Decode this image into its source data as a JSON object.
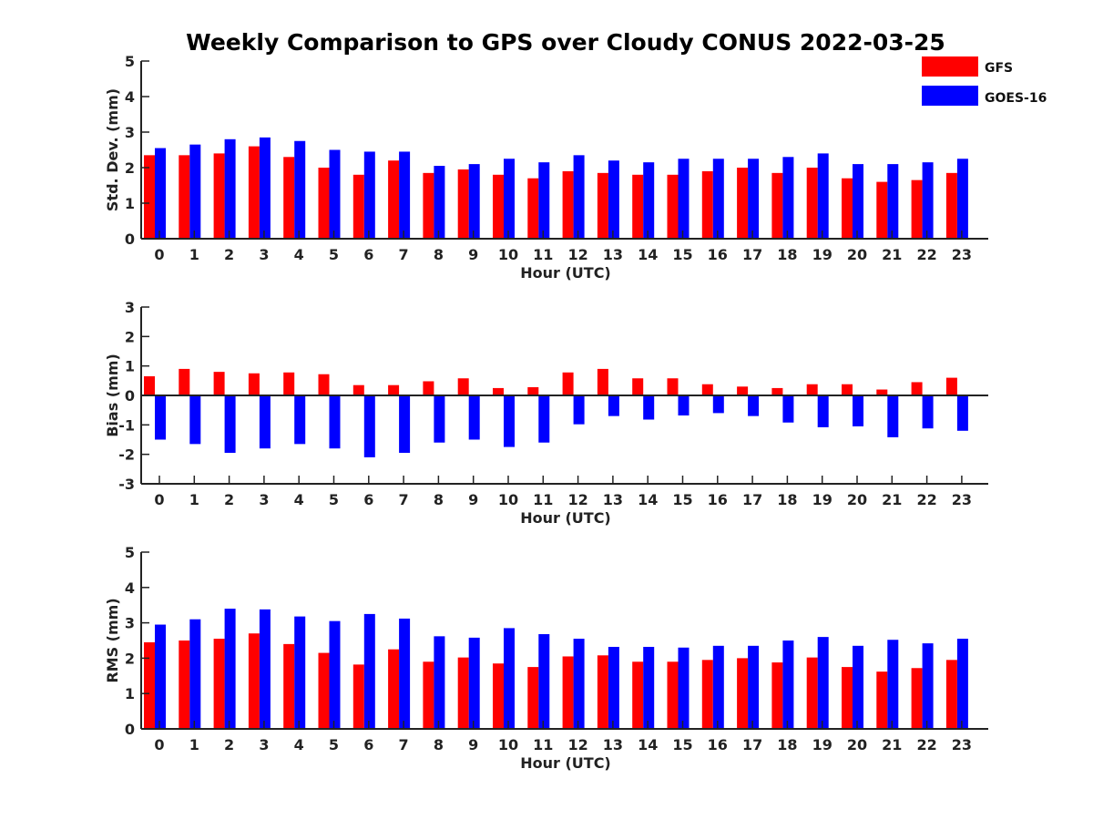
{
  "title": "Weekly Comparison to GPS over Cloudy CONUS 2022-03-25",
  "colors": {
    "GFS": "#ff0000",
    "GOES-16": "#0000ff",
    "axis": "#222222"
  },
  "legend": {
    "placement": "top-right",
    "entries": [
      "GFS",
      "GOES-16"
    ]
  },
  "chart_data": [
    {
      "type": "bar",
      "xlabel": "Hour (UTC)",
      "ylabel": "Std. Dev. (mm)",
      "ylim": [
        0,
        5
      ],
      "yticks": [
        0,
        1,
        2,
        3,
        4,
        5
      ],
      "categories": [
        "0",
        "1",
        "2",
        "3",
        "4",
        "5",
        "6",
        "7",
        "8",
        "9",
        "10",
        "11",
        "12",
        "13",
        "14",
        "15",
        "16",
        "17",
        "18",
        "19",
        "20",
        "21",
        "22",
        "23"
      ],
      "series": [
        {
          "name": "GFS",
          "values": [
            2.35,
            2.35,
            2.4,
            2.6,
            2.3,
            2.0,
            1.8,
            2.2,
            1.85,
            1.95,
            1.8,
            1.7,
            1.9,
            1.85,
            1.8,
            1.8,
            1.9,
            2.0,
            1.85,
            2.0,
            1.7,
            1.6,
            1.65,
            1.85
          ]
        },
        {
          "name": "GOES-16",
          "values": [
            2.55,
            2.65,
            2.8,
            2.85,
            2.75,
            2.5,
            2.45,
            2.45,
            2.05,
            2.1,
            2.25,
            2.15,
            2.35,
            2.2,
            2.15,
            2.25,
            2.25,
            2.25,
            2.3,
            2.4,
            2.1,
            2.1,
            2.15,
            2.25
          ]
        }
      ]
    },
    {
      "type": "bar",
      "xlabel": "Hour (UTC)",
      "ylabel": "Bias (mm)",
      "ylim": [
        -3,
        3
      ],
      "yticks": [
        -3,
        -2,
        -1,
        0,
        1,
        2,
        3
      ],
      "categories": [
        "0",
        "1",
        "2",
        "3",
        "4",
        "5",
        "6",
        "7",
        "8",
        "9",
        "10",
        "11",
        "12",
        "13",
        "14",
        "15",
        "16",
        "17",
        "18",
        "19",
        "20",
        "21",
        "22",
        "23"
      ],
      "series": [
        {
          "name": "GFS",
          "values": [
            0.65,
            0.9,
            0.8,
            0.75,
            0.78,
            0.72,
            0.35,
            0.35,
            0.48,
            0.58,
            0.25,
            0.28,
            0.78,
            0.9,
            0.58,
            0.58,
            0.38,
            0.3,
            0.25,
            0.38,
            0.38,
            0.2,
            0.45,
            0.6
          ]
        },
        {
          "name": "GOES-16",
          "values": [
            -1.5,
            -1.65,
            -1.95,
            -1.8,
            -1.65,
            -1.8,
            -2.1,
            -1.95,
            -1.6,
            -1.5,
            -1.75,
            -1.6,
            -0.98,
            -0.7,
            -0.82,
            -0.68,
            -0.6,
            -0.7,
            -0.92,
            -1.08,
            -1.05,
            -1.42,
            -1.12,
            -1.2
          ]
        }
      ]
    },
    {
      "type": "bar",
      "xlabel": "Hour (UTC)",
      "ylabel": "RMS (mm)",
      "ylim": [
        0,
        5
      ],
      "yticks": [
        0,
        1,
        2,
        3,
        4,
        5
      ],
      "categories": [
        "0",
        "1",
        "2",
        "3",
        "4",
        "5",
        "6",
        "7",
        "8",
        "9",
        "10",
        "11",
        "12",
        "13",
        "14",
        "15",
        "16",
        "17",
        "18",
        "19",
        "20",
        "21",
        "22",
        "23"
      ],
      "series": [
        {
          "name": "GFS",
          "values": [
            2.45,
            2.5,
            2.55,
            2.7,
            2.4,
            2.15,
            1.82,
            2.25,
            1.9,
            2.02,
            1.85,
            1.75,
            2.05,
            2.08,
            1.9,
            1.9,
            1.95,
            2.0,
            1.88,
            2.02,
            1.75,
            1.62,
            1.72,
            1.95
          ]
        },
        {
          "name": "GOES-16",
          "values": [
            2.95,
            3.1,
            3.4,
            3.38,
            3.18,
            3.05,
            3.25,
            3.12,
            2.62,
            2.58,
            2.85,
            2.68,
            2.55,
            2.32,
            2.32,
            2.3,
            2.35,
            2.35,
            2.5,
            2.6,
            2.35,
            2.52,
            2.42,
            2.55
          ]
        }
      ]
    }
  ]
}
